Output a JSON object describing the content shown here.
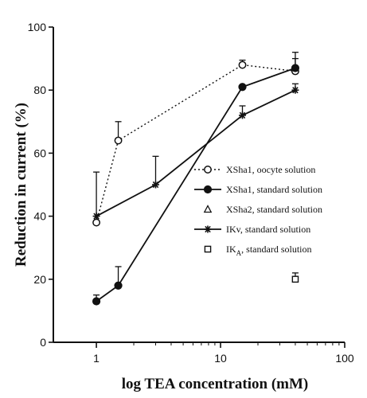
{
  "chart_data": {
    "type": "line",
    "title": "",
    "xlabel": "log TEA concentration (mM)",
    "ylabel": "Reduction in current (%)",
    "x_scale": "log",
    "xlim": [
      0.45,
      100
    ],
    "ylim": [
      0,
      100
    ],
    "x_ticks": [
      {
        "value": 1,
        "label": "1"
      },
      {
        "value": 10,
        "label": "10"
      },
      {
        "value": 100,
        "label": "100"
      }
    ],
    "y_ticks": [
      {
        "value": 0,
        "label": "0"
      },
      {
        "value": 20,
        "label": "20"
      },
      {
        "value": 40,
        "label": "40"
      },
      {
        "value": 60,
        "label": "60"
      },
      {
        "value": 80,
        "label": "80"
      },
      {
        "value": 100,
        "label": "100"
      }
    ],
    "grid": false,
    "legend_position": "right",
    "series": [
      {
        "name": "XSha1, oocyte solution",
        "marker": "open-circle",
        "line": "dotted",
        "x": [
          1,
          1.5,
          15,
          40
        ],
        "y": [
          38,
          64,
          88,
          86
        ],
        "error": [
          16,
          6,
          1.5,
          4
        ]
      },
      {
        "name": "XSha1, standard solution",
        "marker": "filled-circle",
        "line": "solid",
        "x": [
          1,
          1.5,
          15,
          40
        ],
        "y": [
          13,
          18,
          81,
          87
        ],
        "error": [
          2,
          6,
          0,
          5
        ]
      },
      {
        "name": "XSha2, standard solution",
        "marker": "open-triangle",
        "line": "none",
        "x": [],
        "y": [],
        "error": []
      },
      {
        "name": "IKv, standard solution",
        "marker": "asterisk",
        "line": "solid",
        "x": [
          1,
          3,
          15,
          40
        ],
        "y": [
          40,
          50,
          72,
          80
        ],
        "error": [
          0,
          9,
          3,
          2
        ]
      },
      {
        "name": "IKA, standard solution",
        "legend_main": "IK",
        "legend_sub": "A",
        "legend_rest": ", standard solution",
        "marker": "open-square",
        "line": "none",
        "x": [
          40
        ],
        "y": [
          20
        ],
        "error": [
          2
        ]
      }
    ]
  }
}
